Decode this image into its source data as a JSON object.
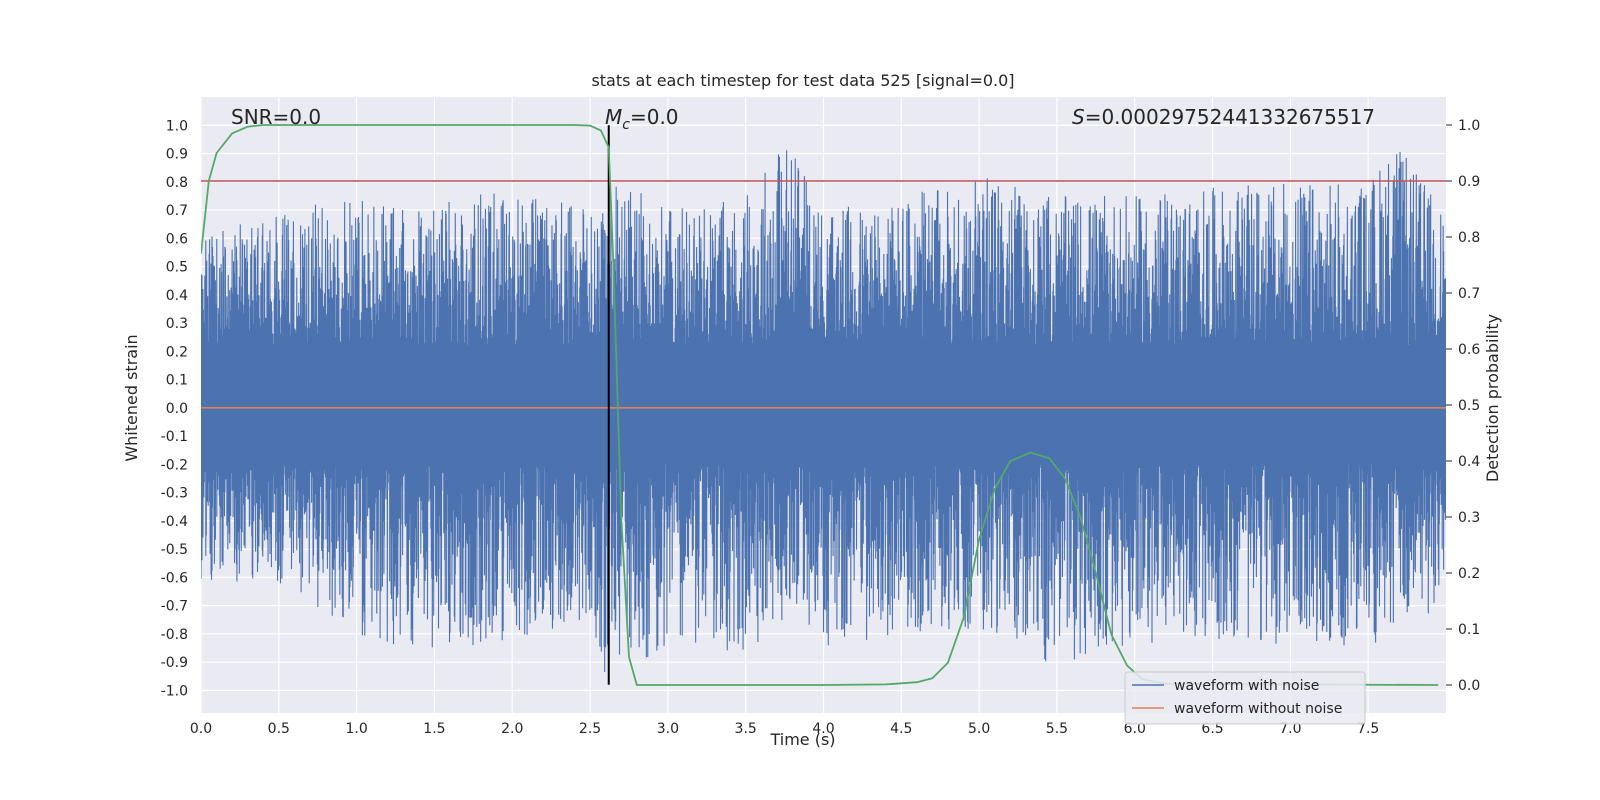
{
  "chart_data": {
    "type": "line",
    "title": "stats at each timestep for test data 525 [signal=0.0]",
    "xlabel": "Time (s)",
    "ylabel_left": "Whitened strain",
    "ylabel_right": "Detection probability",
    "xlim": [
      0.0,
      8.0
    ],
    "ylim_left": [
      -1.08,
      1.1
    ],
    "ylim_right": [
      -0.05,
      1.05
    ],
    "x_ticks": [
      "0.0",
      "0.5",
      "1.0",
      "1.5",
      "2.0",
      "2.5",
      "3.0",
      "3.5",
      "4.0",
      "4.5",
      "5.0",
      "5.5",
      "6.0",
      "6.5",
      "7.0",
      "7.5"
    ],
    "y_ticks_left": [
      "1.0",
      "0.9",
      "0.8",
      "0.7",
      "0.6",
      "0.5",
      "0.4",
      "0.3",
      "0.2",
      "0.1",
      "0.0",
      "-0.1",
      "-0.2",
      "-0.3",
      "-0.4",
      "-0.5",
      "-0.6",
      "-0.7",
      "-0.8",
      "-0.9",
      "-1.0"
    ],
    "y_ticks_right": [
      "1.0",
      "0.9",
      "0.8",
      "0.7",
      "0.6",
      "0.5",
      "0.4",
      "0.3",
      "0.2",
      "0.1",
      "0.0"
    ],
    "grid": true,
    "legend_position": "bottom-right",
    "annotations": {
      "snr": "SNR=0.0",
      "mc_symbol": "M",
      "mc_subscript": "c",
      "mc_value": "=0.0",
      "s_symbol": "S",
      "s_value": "=0.00029752441332675517"
    },
    "series": [
      {
        "name": "waveform with noise",
        "axis": "left",
        "color": "#4c72b0",
        "description_envelope": {
          "x": [
            0.0,
            0.5,
            1.0,
            1.5,
            2.0,
            2.5,
            2.6,
            3.0,
            3.5,
            3.75,
            4.0,
            4.5,
            5.0,
            5.5,
            6.0,
            6.5,
            7.0,
            7.5,
            7.65,
            8.0
          ],
          "upper_peak": [
            0.6,
            0.7,
            0.75,
            0.72,
            0.78,
            0.7,
            0.82,
            0.72,
            0.75,
            1.0,
            0.7,
            0.75,
            0.82,
            0.75,
            0.75,
            0.78,
            0.8,
            0.8,
            0.96,
            0.7
          ],
          "lower_peak": [
            -0.63,
            -0.62,
            -0.8,
            -0.88,
            -0.82,
            -0.75,
            -0.95,
            -0.85,
            -0.88,
            -0.75,
            -0.85,
            -0.8,
            -0.78,
            -0.92,
            -0.85,
            -0.82,
            -0.85,
            -0.85,
            -0.82,
            -0.7
          ]
        }
      },
      {
        "name": "waveform without noise",
        "axis": "left",
        "color": "#dd8452",
        "x": [
          0.0,
          8.0
        ],
        "y": [
          0.0,
          0.0
        ]
      },
      {
        "name": "",
        "axis": "right",
        "color": "#55a868",
        "x": [
          0.0,
          0.05,
          0.1,
          0.2,
          0.3,
          0.4,
          1.0,
          2.0,
          2.4,
          2.5,
          2.57,
          2.62,
          2.65,
          2.7,
          2.75,
          2.8,
          2.9,
          3.5,
          4.0,
          4.4,
          4.6,
          4.7,
          4.8,
          4.9,
          5.0,
          5.1,
          5.2,
          5.33,
          5.45,
          5.55,
          5.65,
          5.75,
          5.85,
          5.95,
          6.05,
          6.2,
          7.95
        ],
        "y": [
          0.77,
          0.9,
          0.95,
          0.985,
          0.997,
          1.0,
          1.0,
          1.0,
          1.0,
          0.999,
          0.99,
          0.96,
          0.75,
          0.3,
          0.05,
          0.0,
          0.0,
          0.0,
          0.0,
          0.001,
          0.005,
          0.012,
          0.04,
          0.12,
          0.26,
          0.35,
          0.4,
          0.415,
          0.405,
          0.37,
          0.3,
          0.2,
          0.09,
          0.035,
          0.01,
          0.002,
          0.0
        ]
      }
    ],
    "hlines": [
      {
        "axis": "right",
        "value": 0.9,
        "color": "#c44e52"
      }
    ],
    "vlines": [
      {
        "x": 2.62,
        "ymin_left": -0.98,
        "ymax_left": 1.0,
        "color": "#000000"
      }
    ]
  }
}
